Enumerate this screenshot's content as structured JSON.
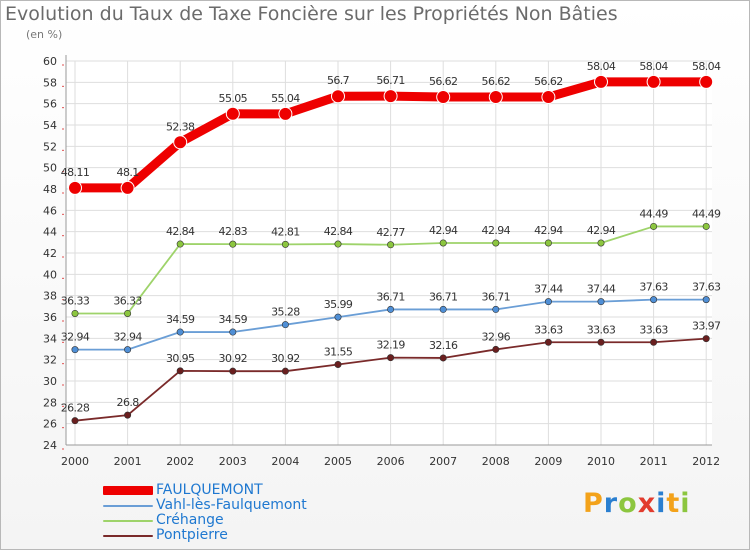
{
  "title": "Evolution du Taux de Taxe Foncière sur les Propriétés Non Bâties",
  "unit": "(en %)",
  "logo": {
    "text": "Proxiti",
    "colors": [
      "#f3a21a",
      "#2a7fd0",
      "#8cc63f",
      "#e23c2e",
      "#2a7fd0",
      "#f3a21a",
      "#8cc63f"
    ]
  },
  "chart_data": {
    "type": "line",
    "title": "Evolution du Taux de Taxe Foncière sur les Propriétés Non Bâties",
    "ylabel": "(en %)",
    "xlabel": "",
    "x": [
      "2000",
      "2001",
      "2002",
      "2003",
      "2004",
      "2005",
      "2006",
      "2007",
      "2008",
      "2009",
      "2010",
      "2011",
      "2012"
    ],
    "ylim": [
      24,
      60
    ],
    "ytick_step": 2,
    "yticks": [
      "24",
      "26",
      "28",
      "30",
      "32",
      "34",
      "36",
      "38",
      "40",
      "42",
      "44",
      "46",
      "48",
      "50",
      "52",
      "54",
      "56",
      "58",
      "60"
    ],
    "grid": true,
    "legend_position": "bottom-left",
    "series": [
      {
        "name": "FAULQUEMONT",
        "color": "#ee0000",
        "marker_fill": "#ee0000",
        "thick": true,
        "values": [
          48.11,
          48.1,
          52.38,
          55.05,
          55.04,
          56.7,
          56.71,
          56.62,
          56.62,
          56.62,
          58.04,
          58.04,
          58.04
        ],
        "labels": [
          "48.11",
          "48.1",
          "52.38",
          "55.05",
          "55.04",
          "56.7",
          "56.71",
          "56.62",
          "56.62",
          "56.62",
          "58.04",
          "58.04",
          "58.04"
        ]
      },
      {
        "name": "Vahl-lès-Faulquemont",
        "color": "#6a9ed6",
        "marker_fill": "#4f8fd6",
        "thick": false,
        "values": [
          32.94,
          32.94,
          34.59,
          34.59,
          35.28,
          35.99,
          36.71,
          36.71,
          36.71,
          37.44,
          37.44,
          37.63,
          37.63
        ],
        "labels": [
          "32.94",
          "32.94",
          "34.59",
          "34.59",
          "35.28",
          "35.99",
          "36.71",
          "36.71",
          "36.71",
          "37.44",
          "37.44",
          "37.63",
          "37.63"
        ]
      },
      {
        "name": "Créhange",
        "color": "#9ed36a",
        "marker_fill": "#8cc63f",
        "thick": false,
        "values": [
          36.33,
          36.33,
          42.84,
          42.83,
          42.81,
          42.84,
          42.77,
          42.94,
          42.94,
          42.94,
          42.94,
          44.49,
          44.49
        ],
        "labels": [
          "36.33",
          "36.33",
          "42.84",
          "42.83",
          "42.81",
          "42.84",
          "42.77",
          "42.94",
          "42.94",
          "42.94",
          "42.94",
          "44.49",
          "44.49"
        ]
      },
      {
        "name": "Pontpierre",
        "color": "#7a2a2a",
        "marker_fill": "#6a1f1f",
        "thick": false,
        "values": [
          26.28,
          26.8,
          30.95,
          30.92,
          30.92,
          31.55,
          32.19,
          32.16,
          32.96,
          33.63,
          33.63,
          33.63,
          33.97
        ],
        "labels": [
          "26.28",
          "26.8",
          "30.95",
          "30.92",
          "30.92",
          "31.55",
          "32.19",
          "32.16",
          "32.96",
          "33.63",
          "33.63",
          "33.63",
          "33.97"
        ]
      }
    ]
  }
}
